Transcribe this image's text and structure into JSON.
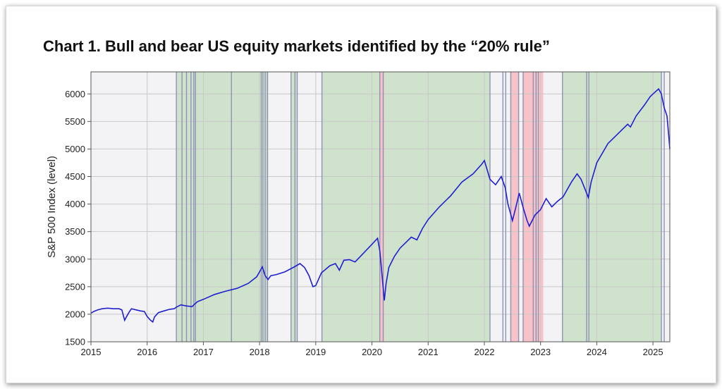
{
  "title": "Chart 1. Bull and bear US equity markets identified by the “20% rule”",
  "colors": {
    "line": "#1f1fd1",
    "bull": "#cfe3cc",
    "bear": "#f7c3c8",
    "neutral": "#f3f3f5",
    "grid": "#c8c8c8",
    "boundary": "#8e93b3"
  },
  "chart_data": {
    "type": "line",
    "title": "Chart 1. Bull and bear US equity markets identified by the “20% rule”",
    "xlabel": "",
    "ylabel": "S&P 500 Index (level)",
    "xlim": [
      2015.0,
      2025.3
    ],
    "ylim": [
      1500,
      6400
    ],
    "x_ticks": [
      2015,
      2016,
      2017,
      2018,
      2019,
      2020,
      2021,
      2022,
      2023,
      2024,
      2025
    ],
    "x_tick_labels": [
      "2015",
      "2016",
      "2017",
      "2018",
      "2019",
      "2020",
      "2021",
      "2022",
      "2023",
      "2024",
      "2025"
    ],
    "y_ticks": [
      1500,
      2000,
      2500,
      3000,
      3500,
      4000,
      4500,
      5000,
      5500,
      6000
    ],
    "y_tick_labels": [
      "1500",
      "2000",
      "2500",
      "3000",
      "3500",
      "4000",
      "4500",
      "5000",
      "5500",
      "6000"
    ],
    "grid": true,
    "regimes": [
      {
        "start": 2015.0,
        "end": 2016.52,
        "type": "neutral"
      },
      {
        "start": 2016.52,
        "end": 2016.86,
        "type": "bull"
      },
      {
        "start": 2016.86,
        "end": 2018.03,
        "type": "bull"
      },
      {
        "start": 2018.03,
        "end": 2018.16,
        "type": "bull"
      },
      {
        "start": 2018.16,
        "end": 2018.56,
        "type": "neutral"
      },
      {
        "start": 2018.56,
        "end": 2018.67,
        "type": "bull"
      },
      {
        "start": 2018.67,
        "end": 2019.11,
        "type": "neutral"
      },
      {
        "start": 2019.11,
        "end": 2020.14,
        "type": "bull"
      },
      {
        "start": 2020.14,
        "end": 2020.22,
        "type": "bear"
      },
      {
        "start": 2020.22,
        "end": 2022.1,
        "type": "bull"
      },
      {
        "start": 2022.1,
        "end": 2022.33,
        "type": "neutral"
      },
      {
        "start": 2022.33,
        "end": 2022.47,
        "type": "neutral"
      },
      {
        "start": 2022.47,
        "end": 2022.61,
        "type": "bear"
      },
      {
        "start": 2022.61,
        "end": 2022.69,
        "type": "neutral"
      },
      {
        "start": 2022.69,
        "end": 2022.95,
        "type": "bear"
      },
      {
        "start": 2022.95,
        "end": 2023.05,
        "type": "bear"
      },
      {
        "start": 2023.05,
        "end": 2023.39,
        "type": "neutral"
      },
      {
        "start": 2023.39,
        "end": 2023.82,
        "type": "bull"
      },
      {
        "start": 2023.82,
        "end": 2025.15,
        "type": "bull"
      },
      {
        "start": 2025.15,
        "end": 2025.3,
        "type": "neutral"
      }
    ],
    "boundaries": [
      2016.52,
      2016.62,
      2016.7,
      2016.78,
      2016.83,
      2016.86,
      2017.5,
      2018.03,
      2018.06,
      2018.1,
      2018.14,
      2018.56,
      2018.63,
      2018.67,
      2019.11,
      2020.14,
      2020.2,
      2022.1,
      2022.33,
      2022.38,
      2022.47,
      2022.61,
      2022.69,
      2022.87,
      2022.92,
      2022.96,
      2023.39,
      2023.82,
      2023.86,
      2025.15,
      2025.2
    ],
    "series": [
      {
        "x": [
          2015.0,
          2015.05,
          2015.12,
          2015.2,
          2015.3,
          2015.4,
          2015.5,
          2015.55,
          2015.6,
          2015.63,
          2015.68,
          2015.72,
          2015.8,
          2015.88,
          2015.95,
          2016.0,
          2016.05,
          2016.1,
          2016.13,
          2016.2,
          2016.3,
          2016.4,
          2016.48,
          2016.52,
          2016.6,
          2016.7,
          2016.8,
          2016.85,
          2016.9,
          2017.0,
          2017.2,
          2017.4,
          2017.6,
          2017.8,
          2017.95,
          2018.05,
          2018.1,
          2018.15,
          2018.2,
          2018.3,
          2018.45,
          2018.6,
          2018.72,
          2018.8,
          2018.88,
          2018.95,
          2019.0,
          2019.1,
          2019.25,
          2019.35,
          2019.42,
          2019.5,
          2019.6,
          2019.7,
          2019.85,
          2020.0,
          2020.1,
          2020.14,
          2020.18,
          2020.22,
          2020.25,
          2020.3,
          2020.4,
          2020.5,
          2020.6,
          2020.7,
          2020.8,
          2020.9,
          2021.0,
          2021.2,
          2021.4,
          2021.6,
          2021.8,
          2021.95,
          2022.0,
          2022.1,
          2022.2,
          2022.3,
          2022.37,
          2022.42,
          2022.5,
          2022.55,
          2022.62,
          2022.7,
          2022.76,
          2022.8,
          2022.9,
          2022.95,
          2023.0,
          2023.1,
          2023.2,
          2023.3,
          2023.4,
          2023.55,
          2023.65,
          2023.72,
          2023.8,
          2023.85,
          2023.9,
          2024.0,
          2024.2,
          2024.3,
          2024.45,
          2024.55,
          2024.6,
          2024.7,
          2024.85,
          2024.95,
          2025.0,
          2025.1,
          2025.15,
          2025.2,
          2025.25,
          2025.28,
          2025.3
        ],
        "y": [
          2020,
          2050,
          2080,
          2100,
          2110,
          2100,
          2100,
          2080,
          1890,
          1950,
          2040,
          2100,
          2080,
          2060,
          2050,
          1960,
          1900,
          1860,
          1950,
          2030,
          2060,
          2090,
          2100,
          2130,
          2170,
          2150,
          2140,
          2190,
          2230,
          2270,
          2360,
          2420,
          2470,
          2560,
          2680,
          2860,
          2700,
          2630,
          2700,
          2720,
          2770,
          2850,
          2920,
          2850,
          2700,
          2500,
          2520,
          2750,
          2880,
          2920,
          2800,
          2980,
          2990,
          2950,
          3110,
          3270,
          3380,
          3150,
          2700,
          2250,
          2550,
          2850,
          3050,
          3200,
          3300,
          3400,
          3350,
          3560,
          3720,
          3950,
          4150,
          4400,
          4550,
          4720,
          4790,
          4450,
          4350,
          4500,
          4300,
          4000,
          3700,
          3900,
          4200,
          3900,
          3700,
          3600,
          3800,
          3850,
          3900,
          4100,
          3950,
          4050,
          4130,
          4400,
          4550,
          4450,
          4250,
          4120,
          4400,
          4750,
          5100,
          5200,
          5350,
          5450,
          5400,
          5600,
          5800,
          5950,
          6000,
          6090,
          6000,
          5750,
          5600,
          5250,
          5000
        ]
      }
    ]
  }
}
